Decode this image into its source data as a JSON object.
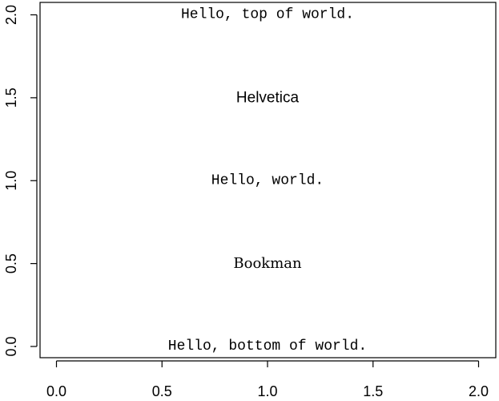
{
  "chart_data": {
    "type": "scatter",
    "title": "",
    "xlabel": "",
    "ylabel": "",
    "xlim": [
      0,
      2
    ],
    "ylim": [
      0,
      2
    ],
    "x_ticks": [
      "0.0",
      "0.5",
      "1.0",
      "1.5",
      "2.0"
    ],
    "y_ticks": [
      "0.0",
      "0.5",
      "1.0",
      "1.5",
      "2.0"
    ],
    "grid": false,
    "annotations": [
      {
        "text": "Hello, top of world.",
        "x": 1.0,
        "y": 2.0,
        "font": "mono"
      },
      {
        "text": "Helvetica",
        "x": 1.0,
        "y": 1.5,
        "font": "sans"
      },
      {
        "text": "Hello, world.",
        "x": 1.0,
        "y": 1.0,
        "font": "mono"
      },
      {
        "text": "Bookman",
        "x": 1.0,
        "y": 0.5,
        "font": "serif"
      },
      {
        "text": "Hello, bottom of world.",
        "x": 1.0,
        "y": 0.0,
        "font": "mono"
      }
    ]
  }
}
